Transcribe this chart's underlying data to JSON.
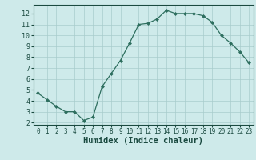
{
  "x": [
    0,
    1,
    2,
    3,
    4,
    5,
    6,
    7,
    8,
    9,
    10,
    11,
    12,
    13,
    14,
    15,
    16,
    17,
    18,
    19,
    20,
    21,
    22,
    23
  ],
  "y": [
    4.7,
    4.1,
    3.5,
    3.0,
    3.0,
    2.2,
    2.5,
    5.3,
    6.5,
    7.7,
    9.3,
    11.0,
    11.1,
    11.5,
    12.3,
    12.0,
    12.0,
    12.0,
    11.8,
    11.2,
    10.0,
    9.3,
    8.5,
    7.5
  ],
  "xlabel": "Humidex (Indice chaleur)",
  "ylim": [
    1.8,
    12.8
  ],
  "xlim": [
    -0.5,
    23.5
  ],
  "yticks": [
    2,
    3,
    4,
    5,
    6,
    7,
    8,
    9,
    10,
    11,
    12
  ],
  "xticks": [
    0,
    1,
    2,
    3,
    4,
    5,
    6,
    7,
    8,
    9,
    10,
    11,
    12,
    13,
    14,
    15,
    16,
    17,
    18,
    19,
    20,
    21,
    22,
    23
  ],
  "line_color": "#2d6e5e",
  "marker_color": "#2d6e5e",
  "bg_color": "#ceeaea",
  "grid_color": "#a8cccc",
  "tick_label_color": "#1a4a40",
  "xlabel_color": "#1a4a40",
  "xlabel_fontsize": 7.5,
  "tick_fontsize": 5.5
}
